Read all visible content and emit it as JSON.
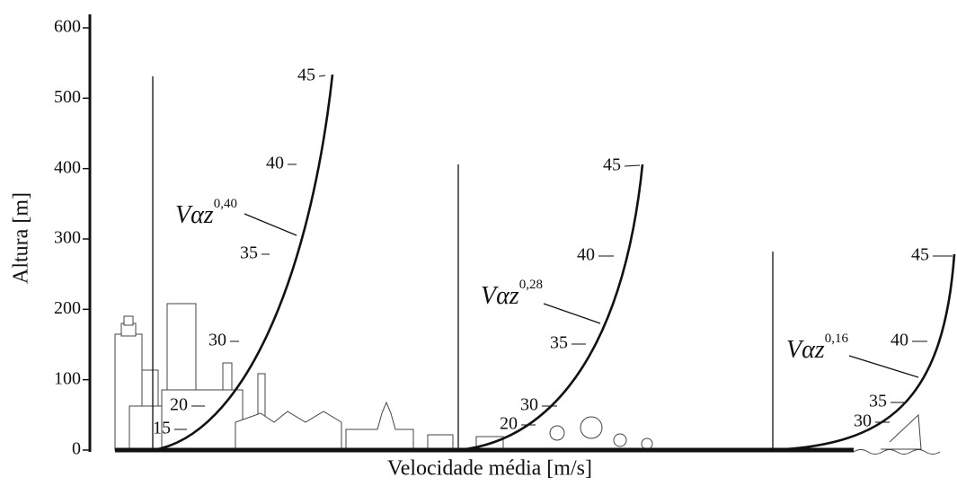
{
  "y_axis": {
    "title": "Altura [m]",
    "ticks": [
      0,
      100,
      200,
      300,
      400,
      500,
      600
    ]
  },
  "x_axis": {
    "title": "Velocidade média [m/s]"
  },
  "profiles": [
    {
      "base": "Vαz",
      "exponent": "0,40",
      "speeds": [
        "45",
        "40",
        "35",
        "30",
        "20",
        "15"
      ]
    },
    {
      "base": "Vαz",
      "exponent": "0,28",
      "speeds": [
        "45",
        "40",
        "35",
        "30",
        "20"
      ]
    },
    {
      "base": "Vαz",
      "exponent": "0,16",
      "speeds": [
        "45",
        "40",
        "35",
        "30"
      ]
    }
  ]
}
